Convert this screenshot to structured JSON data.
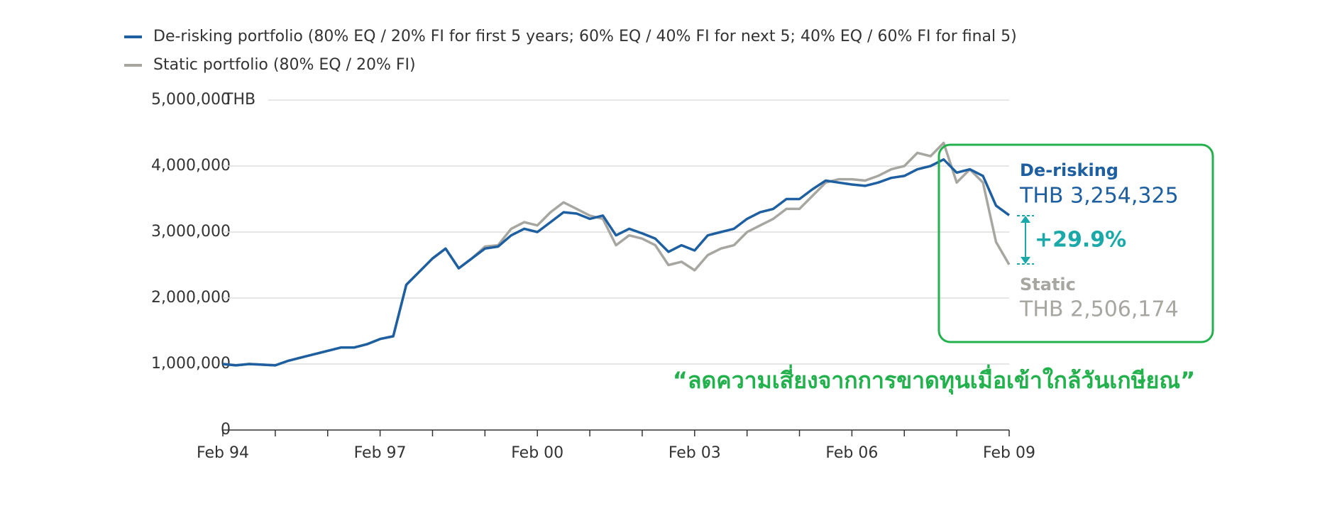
{
  "chart_data": {
    "type": "line",
    "categories": [
      "Feb 94",
      null,
      null,
      null,
      null,
      null,
      null,
      null,
      null,
      null,
      null,
      null,
      "Feb 97",
      null,
      null,
      null,
      null,
      null,
      null,
      null,
      null,
      null,
      null,
      null,
      "Feb 00",
      null,
      null,
      null,
      null,
      null,
      null,
      null,
      null,
      null,
      null,
      null,
      "Feb 03",
      null,
      null,
      null,
      null,
      null,
      null,
      null,
      null,
      null,
      null,
      null,
      "Feb 06",
      null,
      null,
      null,
      null,
      null,
      null,
      null,
      null,
      null,
      null,
      null,
      "Feb 09"
    ],
    "series": [
      {
        "name": "De-risking portfolio (80% EQ / 20% FI for first 5 years; 60% EQ / 40% FI for next 5; 40% EQ / 60% FI for final 5)",
        "color": "#1d5fa0",
        "values": [
          1000000,
          980000,
          1000000,
          990000,
          980000,
          1050000,
          1100000,
          1150000,
          1200000,
          1250000,
          1250000,
          1300000,
          1380000,
          1420000,
          2200000,
          2400000,
          2600000,
          2750000,
          2450000,
          2600000,
          2750000,
          2780000,
          2950000,
          3050000,
          3000000,
          3150000,
          3300000,
          3280000,
          3200000,
          3250000,
          2950000,
          3050000,
          2980000,
          2900000,
          2700000,
          2800000,
          2720000,
          2950000,
          3000000,
          3050000,
          3200000,
          3300000,
          3350000,
          3500000,
          3500000,
          3650000,
          3780000,
          3750000,
          3720000,
          3700000,
          3750000,
          3820000,
          3850000,
          3950000,
          4000000,
          4100000,
          3900000,
          3950000,
          3850000,
          3400000,
          3254325
        ]
      },
      {
        "name": "Static portfolio (80% EQ / 20% FI)",
        "color": "#a8a6a1",
        "values": [
          1000000,
          980000,
          1000000,
          990000,
          980000,
          1050000,
          1100000,
          1150000,
          1200000,
          1250000,
          1250000,
          1300000,
          1380000,
          1420000,
          2200000,
          2400000,
          2600000,
          2750000,
          2450000,
          2600000,
          2780000,
          2800000,
          3050000,
          3150000,
          3100000,
          3300000,
          3450000,
          3350000,
          3250000,
          3200000,
          2800000,
          2950000,
          2900000,
          2800000,
          2500000,
          2550000,
          2420000,
          2650000,
          2750000,
          2800000,
          3000000,
          3100000,
          3200000,
          3350000,
          3350000,
          3550000,
          3750000,
          3800000,
          3800000,
          3780000,
          3850000,
          3950000,
          4000000,
          4200000,
          4150000,
          4350000,
          3750000,
          3950000,
          3750000,
          2850000,
          2506174
        ]
      }
    ],
    "ylim": [
      0,
      5000000
    ],
    "yticks": [
      0,
      {
        "value": 1000000,
        "label": "1,000,000"
      },
      {
        "value": 2000000,
        "label": "2,000,000"
      },
      {
        "value": 3000000,
        "label": "3,000,000"
      },
      {
        "value": 4000000,
        "label": "4,000,000"
      },
      {
        "value": 5000000,
        "label": "5,000,000"
      }
    ],
    "y_unit": "THB",
    "grid": true,
    "annotations": {
      "derisking_label": "De-risking",
      "derisking_value": "THB 3,254,325",
      "difference": "+29.9%",
      "static_label": "Static",
      "static_value": "THB 2,506,174",
      "quote": "“ลดความเสี่ยงจากการขาดทุนเมื่อเข้าใกล้วันเกษียณ”"
    }
  }
}
